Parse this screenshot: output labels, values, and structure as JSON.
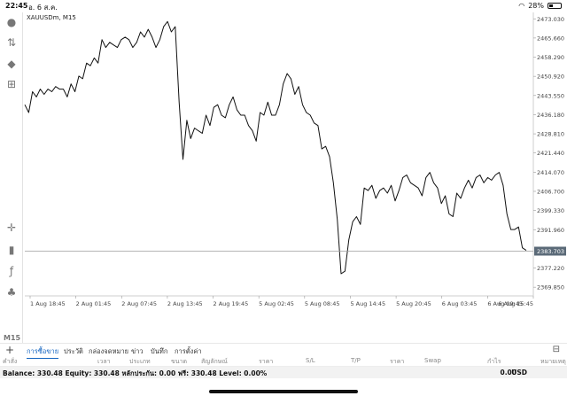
{
  "status": {
    "time": "22:45",
    "date": "อ. 6 ส.ค.",
    "battery": "28%"
  },
  "sidebar": {
    "label": "M15",
    "icons": [
      "account-icon",
      "trade-up-icon",
      "chat-icon",
      "add-chart-icon",
      "crosshair-icon",
      "candle-icon",
      "function-icon",
      "objects-icon"
    ]
  },
  "chart": {
    "symbol": "XAUUSDm, M15",
    "current_price": "2383.703",
    "price_labels": [
      "2473.030",
      "2465.660",
      "2458.290",
      "2450.920",
      "2443.550",
      "2436.180",
      "2428.810",
      "2421.440",
      "2414.070",
      "2406.700",
      "2399.330",
      "2391.960",
      "2377.220",
      "2369.850"
    ],
    "time_labels": [
      "1 Aug 18:45",
      "2 Aug 01:45",
      "2 Aug 07:45",
      "2 Aug 13:45",
      "2 Aug 19:45",
      "5 Aug 02:45",
      "5 Aug 08:45",
      "5 Aug 14:45",
      "5 Aug 20:45",
      "6 Aug 03:45",
      "6 Aug 09:45",
      "6 Aug 15:45"
    ]
  },
  "chart_data": {
    "type": "line",
    "series": [
      {
        "values": [
          2440,
          2437,
          2445,
          2443,
          2446,
          2444,
          2446,
          2445,
          2447,
          2446,
          2446,
          2443,
          2448,
          2445,
          2451,
          2450,
          2456,
          2455,
          2458,
          2456,
          2465,
          2462,
          2464,
          2463,
          2462,
          2465,
          2466,
          2465,
          2462,
          2464,
          2468,
          2466,
          2469,
          2466,
          2462,
          2465,
          2470,
          2472,
          2468,
          2470,
          2441,
          2419,
          2434,
          2427,
          2431,
          2430,
          2429,
          2436,
          2432,
          2439,
          2440,
          2436,
          2435,
          2440,
          2443,
          2438,
          2436,
          2436,
          2432,
          2430,
          2426,
          2437,
          2436,
          2441,
          2436,
          2436,
          2440,
          2448,
          2452,
          2450,
          2444,
          2447,
          2440,
          2437,
          2436,
          2433,
          2432,
          2423,
          2424,
          2420,
          2410,
          2396,
          2375,
          2376,
          2388,
          2395,
          2397,
          2394,
          2408,
          2407,
          2409,
          2404,
          2407,
          2408,
          2406,
          2409,
          2403,
          2407,
          2412,
          2413,
          2410,
          2409,
          2408,
          2405,
          2412,
          2414,
          2410,
          2408,
          2402,
          2405,
          2398,
          2397,
          2406,
          2404,
          2408,
          2411,
          2408,
          2412,
          2413,
          2410,
          2412,
          2411,
          2413,
          2414,
          2409,
          2398,
          2392,
          2392,
          2393,
          2385,
          2384
        ]
      }
    ],
    "ylim": [
      2366.5,
      2475.5
    ],
    "grid": false
  },
  "tabs": [
    "การซื้อขาย",
    "ประวัติ",
    "กล่องจดหมาย",
    "ข่าว",
    "บันทึก",
    "การตั้งค่า"
  ],
  "columns": [
    "คำสั่ง",
    "เวลา",
    "ประเภท",
    "ขนาด",
    "สัญลักษณ์",
    "ราคา",
    "S/L",
    "T/P",
    "ราคา",
    "Swap",
    "กำไร",
    "หมายเหตุ"
  ],
  "balance_text": "Balance: 330.48 Equity: 330.48 หลักประกัน: 0.00 ฟรี: 330.48 Level: 0.00%",
  "total_profit": "0.00",
  "currency": "USD"
}
